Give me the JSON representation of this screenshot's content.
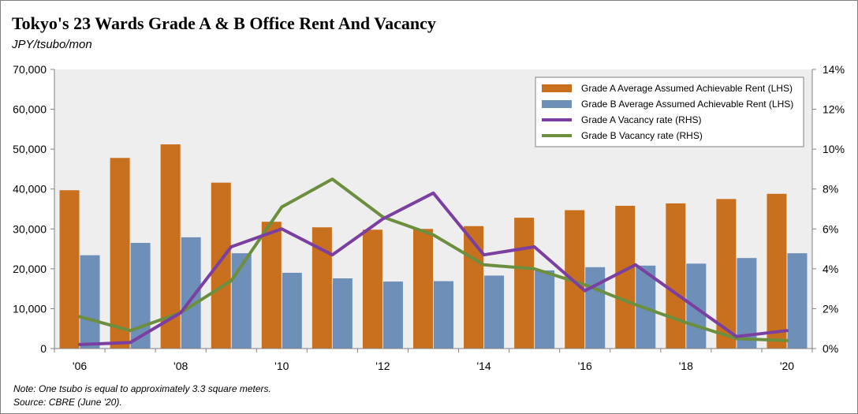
{
  "title": "Tokyo's 23 Wards Grade A & B Office Rent And Vacancy",
  "subtitle": "JPY/tsubo/mon",
  "notes": {
    "note": "Note: One tsubo is equal to approximately 3.3 square meters.",
    "source": "Source: CBRE (June '20)."
  },
  "chart_data": {
    "type": "bar",
    "years": [
      2006,
      2007,
      2008,
      2009,
      2010,
      2011,
      2012,
      2013,
      2014,
      2015,
      2016,
      2017,
      2018,
      2019,
      2020
    ],
    "x_tick_labels": [
      "'06",
      "'08",
      "'10",
      "'12",
      "'14",
      "'16",
      "'18",
      "'20"
    ],
    "x_tick_years": [
      2006,
      2008,
      2010,
      2012,
      2014,
      2016,
      2018,
      2020
    ],
    "left_axis": {
      "min": 0,
      "max": 70000,
      "step": 10000,
      "tick_labels": [
        "0",
        "10,000",
        "20,000",
        "30,000",
        "40,000",
        "50,000",
        "60,000",
        "70,000"
      ]
    },
    "right_axis": {
      "min": 0,
      "max": 14,
      "step": 2,
      "tick_labels": [
        "0%",
        "2%",
        "4%",
        "6%",
        "8%",
        "10%",
        "12%",
        "14%"
      ]
    },
    "grid": false,
    "legend_position": "top-right",
    "series": [
      {
        "name": "Grade A Average Assumed Achievable Rent (LHS)",
        "kind": "bar",
        "axis": "left",
        "color": "#C8701E",
        "values": [
          39700,
          47800,
          51200,
          41600,
          31800,
          30400,
          29800,
          30000,
          30700,
          32800,
          34700,
          35800,
          36400,
          37500,
          38800
        ]
      },
      {
        "name": "Grade B Average Assumed Achievable Rent (LHS)",
        "kind": "bar",
        "axis": "left",
        "color": "#6E8FB8",
        "values": [
          23400,
          26500,
          27900,
          23900,
          19000,
          17600,
          16800,
          16900,
          18300,
          19600,
          20400,
          20800,
          21300,
          22700,
          23900
        ]
      },
      {
        "name": "Grade A Vacancy rate (RHS)",
        "kind": "line",
        "axis": "right",
        "color": "#7A3FA0",
        "values": [
          0.2,
          0.3,
          1.8,
          5.1,
          6.0,
          4.7,
          6.5,
          7.8,
          4.7,
          5.1,
          2.9,
          4.2,
          2.4,
          0.6,
          0.9
        ]
      },
      {
        "name": "Grade B Vacancy rate (RHS)",
        "kind": "line",
        "axis": "right",
        "color": "#6B8F3E",
        "values": [
          1.6,
          0.9,
          1.8,
          3.4,
          7.1,
          8.5,
          6.6,
          5.7,
          4.2,
          4.0,
          3.2,
          2.2,
          1.3,
          0.5,
          0.4
        ]
      }
    ]
  }
}
